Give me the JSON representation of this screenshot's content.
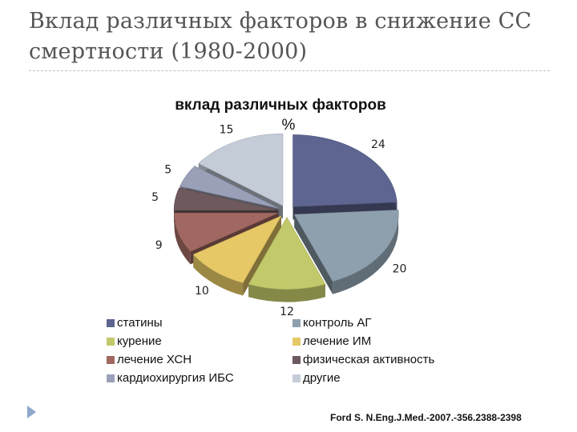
{
  "slide": {
    "title": "Вклад различных факторов в снижение СС смертности (1980-2000)",
    "citation": "Ford S. N.Eng.J.Med.-2007.-356.2388-2398"
  },
  "chart_data": {
    "type": "pie",
    "title": "вклад различных факторов",
    "subtitle": "%",
    "categories": [
      "статины",
      "контроль АГ",
      "курение",
      "лечение ИМ",
      "лечение ХСН",
      "физическая активность",
      "кардиохирургия ИБС",
      "другие"
    ],
    "values": [
      24,
      20,
      12,
      10,
      9,
      5,
      5,
      15
    ],
    "colors": [
      "#5e6591",
      "#8ea0ad",
      "#c2c96a",
      "#e6c866",
      "#a06860",
      "#6e5a5c",
      "#9aa0b8",
      "#c4ccd8"
    ],
    "legend_position": "bottom",
    "exploded": true,
    "three_d": true
  }
}
